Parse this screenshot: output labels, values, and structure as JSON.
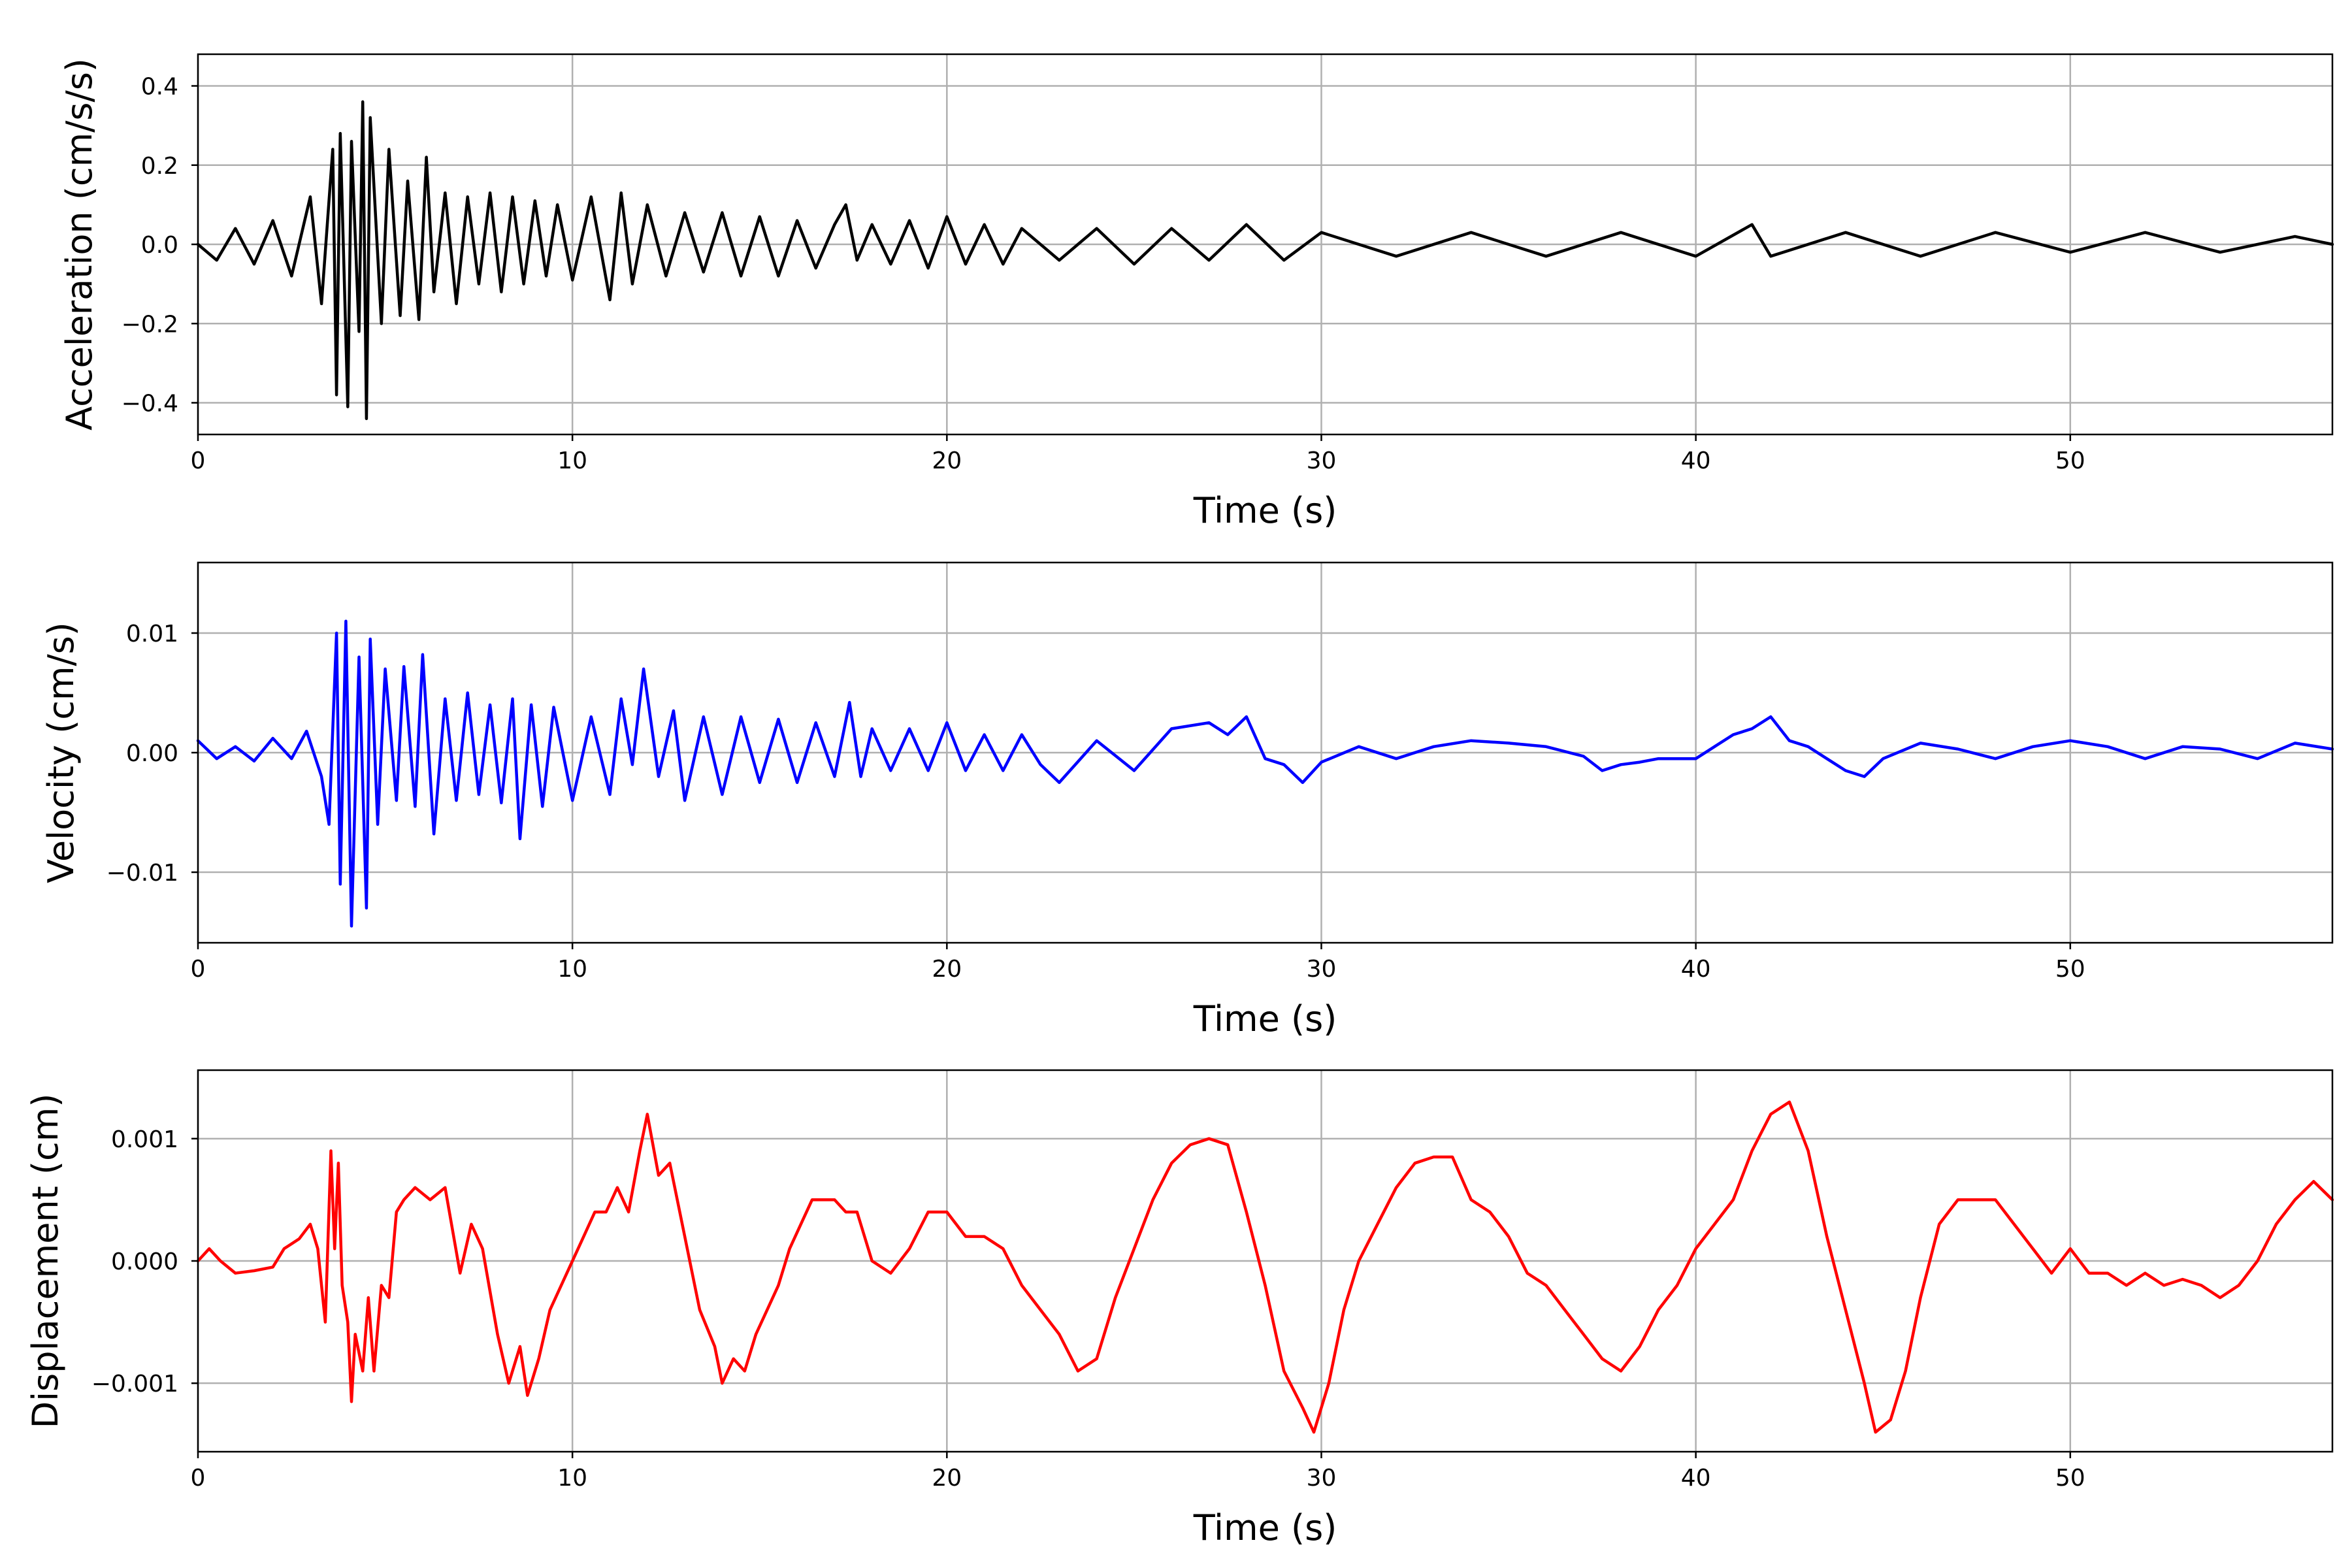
{
  "chart_data": [
    {
      "type": "line",
      "xlabel": "Time (s)",
      "ylabel": "Acceleration (cm/s/s)",
      "xlim": [
        0,
        57
      ],
      "ylim": [
        -0.48,
        0.48
      ],
      "xticks": [
        0,
        10,
        20,
        30,
        40,
        50
      ],
      "yticks": [
        -0.4,
        -0.2,
        0.0,
        0.2,
        0.4
      ],
      "xtick_labels": [
        "0",
        "10",
        "20",
        "30",
        "40",
        "50"
      ],
      "ytick_labels": [
        "−0.4",
        "−0.2",
        "0.0",
        "0.2",
        "0.4"
      ],
      "grid": true,
      "series": [
        {
          "color": "#000000",
          "x": [
            0,
            0.5,
            1.0,
            1.5,
            2.0,
            2.5,
            3.0,
            3.3,
            3.6,
            3.7,
            3.8,
            4.0,
            4.1,
            4.3,
            4.4,
            4.5,
            4.6,
            4.9,
            5.1,
            5.4,
            5.6,
            5.9,
            6.1,
            6.3,
            6.6,
            6.9,
            7.2,
            7.5,
            7.8,
            8.1,
            8.4,
            8.7,
            9.0,
            9.3,
            9.6,
            10.0,
            10.5,
            11.0,
            11.3,
            11.6,
            12.0,
            12.5,
            13.0,
            13.5,
            14.0,
            14.5,
            15.0,
            15.5,
            16.0,
            16.5,
            17.0,
            17.3,
            17.6,
            18.0,
            18.5,
            19.0,
            19.5,
            20.0,
            20.5,
            21.0,
            21.5,
            22.0,
            23.0,
            24.0,
            25.0,
            26.0,
            27.0,
            28.0,
            29.0,
            30.0,
            32.0,
            34.0,
            36.0,
            38.0,
            40.0,
            41.5,
            42.0,
            44.0,
            46.0,
            48.0,
            50.0,
            52.0,
            54.0,
            56.0,
            57.0
          ],
          "y": [
            0.0,
            -0.04,
            0.04,
            -0.05,
            0.06,
            -0.08,
            0.12,
            -0.15,
            0.24,
            -0.38,
            0.28,
            -0.41,
            0.26,
            -0.22,
            0.36,
            -0.44,
            0.32,
            -0.2,
            0.24,
            -0.18,
            0.16,
            -0.19,
            0.22,
            -0.12,
            0.13,
            -0.15,
            0.12,
            -0.1,
            0.13,
            -0.12,
            0.12,
            -0.1,
            0.11,
            -0.08,
            0.1,
            -0.09,
            0.12,
            -0.14,
            0.13,
            -0.1,
            0.1,
            -0.08,
            0.08,
            -0.07,
            0.08,
            -0.08,
            0.07,
            -0.08,
            0.06,
            -0.06,
            0.05,
            0.1,
            -0.04,
            0.05,
            -0.05,
            0.06,
            -0.06,
            0.07,
            -0.05,
            0.05,
            -0.05,
            0.04,
            -0.04,
            0.04,
            -0.05,
            0.04,
            -0.04,
            0.05,
            -0.04,
            0.03,
            -0.03,
            0.03,
            -0.03,
            0.03,
            -0.03,
            0.05,
            -0.03,
            0.03,
            -0.03,
            0.03,
            -0.02,
            0.03,
            -0.02,
            0.02,
            0.0
          ]
        }
      ]
    },
    {
      "type": "line",
      "xlabel": "Time (s)",
      "ylabel": "Velocity (cm/s)",
      "xlim": [
        0,
        57
      ],
      "ylim": [
        -0.0159,
        0.0159
      ],
      "xticks": [
        0,
        10,
        20,
        30,
        40,
        50
      ],
      "yticks": [
        -0.01,
        0.0,
        0.01
      ],
      "xtick_labels": [
        "0",
        "10",
        "20",
        "30",
        "40",
        "50"
      ],
      "ytick_labels": [
        "−0.01",
        "0.00",
        "0.01"
      ],
      "grid": true,
      "series": [
        {
          "color": "#0000ff",
          "x": [
            0,
            0.5,
            1.0,
            1.5,
            2.0,
            2.5,
            2.9,
            3.3,
            3.5,
            3.7,
            3.8,
            3.95,
            4.1,
            4.3,
            4.5,
            4.6,
            4.8,
            5.0,
            5.3,
            5.5,
            5.8,
            6.0,
            6.3,
            6.6,
            6.9,
            7.2,
            7.5,
            7.8,
            8.1,
            8.4,
            8.6,
            8.9,
            9.2,
            9.5,
            10.0,
            10.5,
            11.0,
            11.3,
            11.6,
            11.9,
            12.3,
            12.7,
            13.0,
            13.5,
            14.0,
            14.5,
            15.0,
            15.5,
            16.0,
            16.5,
            17.0,
            17.4,
            17.7,
            18.0,
            18.5,
            19.0,
            19.5,
            20.0,
            20.5,
            21.0,
            21.5,
            22.0,
            22.5,
            23.0,
            24.0,
            25.0,
            26.0,
            27.0,
            27.5,
            28.0,
            28.5,
            29.0,
            29.5,
            30.0,
            31.0,
            32.0,
            33.0,
            34.0,
            35.0,
            36.0,
            37.0,
            37.5,
            38.0,
            38.5,
            39.0,
            40.0,
            40.5,
            41.0,
            41.5,
            42.0,
            42.5,
            43.0,
            43.5,
            44.0,
            44.5,
            45.0,
            46.0,
            47.0,
            48.0,
            49.0,
            50.0,
            51.0,
            52.0,
            53.0,
            54.0,
            55.0,
            56.0,
            57.0
          ],
          "y": [
            0.001,
            -0.0005,
            0.0005,
            -0.0007,
            0.0012,
            -0.0005,
            0.0018,
            -0.002,
            -0.006,
            0.01,
            -0.011,
            0.011,
            -0.0145,
            0.008,
            -0.013,
            0.0095,
            -0.006,
            0.007,
            -0.004,
            0.0072,
            -0.0045,
            0.0082,
            -0.0068,
            0.0045,
            -0.004,
            0.005,
            -0.0035,
            0.004,
            -0.0042,
            0.0045,
            -0.0072,
            0.004,
            -0.0045,
            0.0038,
            -0.004,
            0.003,
            -0.0035,
            0.0045,
            -0.001,
            0.007,
            -0.002,
            0.0035,
            -0.004,
            0.003,
            -0.0035,
            0.003,
            -0.0025,
            0.0028,
            -0.0025,
            0.0025,
            -0.002,
            0.0042,
            -0.002,
            0.002,
            -0.0015,
            0.002,
            -0.0015,
            0.0025,
            -0.0015,
            0.0015,
            -0.0015,
            0.0015,
            -0.001,
            -0.0025,
            0.001,
            -0.0015,
            0.002,
            0.0025,
            0.0015,
            0.003,
            -0.0005,
            -0.001,
            -0.0025,
            -0.0008,
            0.0005,
            -0.0005,
            0.0005,
            0.001,
            0.0008,
            0.0005,
            -0.0003,
            -0.0015,
            -0.001,
            -0.0008,
            -0.0005,
            -0.0005,
            0.0005,
            0.0015,
            0.002,
            0.003,
            0.001,
            0.0005,
            -0.0005,
            -0.0015,
            -0.002,
            -0.0005,
            0.0008,
            0.0003,
            -0.0005,
            0.0005,
            0.001,
            0.0005,
            -0.0005,
            0.0005,
            0.0003,
            -0.0005,
            0.0008,
            0.0003
          ]
        }
      ]
    },
    {
      "type": "line",
      "xlabel": "Time (s)",
      "ylabel": "Displacement (cm)",
      "xlim": [
        0,
        57
      ],
      "ylim": [
        -0.00156,
        0.00156
      ],
      "xticks": [
        0,
        10,
        20,
        30,
        40,
        50
      ],
      "yticks": [
        -0.001,
        0.0,
        0.001
      ],
      "xtick_labels": [
        "0",
        "10",
        "20",
        "30",
        "40",
        "50"
      ],
      "ytick_labels": [
        "−0.001",
        "0.000",
        "0.001"
      ],
      "grid": true,
      "series": [
        {
          "color": "#ff0000",
          "x": [
            0,
            0.3,
            0.6,
            1.0,
            1.5,
            2.0,
            2.3,
            2.7,
            3.0,
            3.2,
            3.4,
            3.55,
            3.65,
            3.75,
            3.85,
            4.0,
            4.1,
            4.2,
            4.4,
            4.55,
            4.7,
            4.9,
            5.1,
            5.3,
            5.5,
            5.8,
            6.2,
            6.6,
            7.0,
            7.3,
            7.6,
            8.0,
            8.3,
            8.6,
            8.8,
            9.1,
            9.4,
            9.7,
            10.0,
            10.3,
            10.6,
            10.9,
            11.2,
            11.5,
            11.8,
            12.0,
            12.3,
            12.6,
            13.0,
            13.4,
            13.8,
            14.0,
            14.3,
            14.6,
            14.9,
            15.2,
            15.5,
            15.8,
            16.1,
            16.4,
            16.7,
            17.0,
            17.3,
            17.6,
            18.0,
            18.5,
            19.0,
            19.5,
            20.0,
            20.5,
            21.0,
            21.5,
            22.0,
            22.5,
            23.0,
            23.5,
            24.0,
            24.5,
            25.0,
            25.5,
            26.0,
            26.5,
            27.0,
            27.5,
            28.0,
            28.5,
            29.0,
            29.5,
            29.8,
            30.2,
            30.6,
            31.0,
            31.5,
            32.0,
            32.5,
            33.0,
            33.5,
            34.0,
            34.5,
            35.0,
            35.5,
            36.0,
            36.5,
            37.0,
            37.5,
            38.0,
            38.5,
            39.0,
            39.5,
            40.0,
            40.5,
            41.0,
            41.5,
            42.0,
            42.5,
            43.0,
            43.5,
            44.0,
            44.5,
            44.8,
            45.2,
            45.6,
            46.0,
            46.5,
            47.0,
            47.5,
            48.0,
            48.5,
            49.0,
            49.5,
            50.0,
            50.5,
            51.0,
            51.5,
            52.0,
            52.5,
            53.0,
            53.5,
            54.0,
            54.5,
            55.0,
            55.5,
            56.0,
            56.5,
            57.0
          ],
          "y": [
            0.0,
            0.0001,
            0.0,
            -0.0001,
            -8e-05,
            -5e-05,
            0.0001,
            0.00018,
            0.0003,
            0.0001,
            -0.0005,
            0.0009,
            0.0001,
            0.0008,
            -0.0002,
            -0.0005,
            -0.00115,
            -0.0006,
            -0.0009,
            -0.0003,
            -0.0009,
            -0.0002,
            -0.0003,
            0.0004,
            0.0005,
            0.0006,
            0.0005,
            0.0006,
            -0.0001,
            0.0003,
            0.0001,
            -0.0006,
            -0.001,
            -0.0007,
            -0.0011,
            -0.0008,
            -0.0004,
            -0.0002,
            0.0,
            0.0002,
            0.0004,
            0.0004,
            0.0006,
            0.0004,
            0.0009,
            0.0012,
            0.0007,
            0.0008,
            0.0002,
            -0.0004,
            -0.0007,
            -0.001,
            -0.0008,
            -0.0009,
            -0.0006,
            -0.0004,
            -0.0002,
            0.0001,
            0.0003,
            0.0005,
            0.0005,
            0.0005,
            0.0004,
            0.0004,
            0.0,
            -0.0001,
            0.0001,
            0.0004,
            0.0004,
            0.0002,
            0.0002,
            0.0001,
            -0.0002,
            -0.0004,
            -0.0006,
            -0.0009,
            -0.0008,
            -0.0003,
            0.0001,
            0.0005,
            0.0008,
            0.00095,
            0.001,
            0.00095,
            0.0004,
            -0.0002,
            -0.0009,
            -0.0012,
            -0.0014,
            -0.001,
            -0.0004,
            0.0,
            0.0003,
            0.0006,
            0.0008,
            0.00085,
            0.00085,
            0.0005,
            0.0004,
            0.0002,
            -0.0001,
            -0.0002,
            -0.0004,
            -0.0006,
            -0.0008,
            -0.0009,
            -0.0007,
            -0.0004,
            -0.0002,
            0.0001,
            0.0003,
            0.0005,
            0.0009,
            0.0012,
            0.0013,
            0.0009,
            0.0002,
            -0.0004,
            -0.001,
            -0.0014,
            -0.0013,
            -0.0009,
            -0.0003,
            0.0003,
            0.0005,
            0.0005,
            0.0005,
            0.0003,
            0.0001,
            -0.0001,
            0.0001,
            -0.0001,
            -0.0001,
            -0.0002,
            -0.0001,
            -0.0002,
            -0.00015,
            -0.0002,
            -0.0003,
            -0.0002,
            0.0,
            0.0003,
            0.0005,
            0.00065,
            0.0005
          ]
        }
      ]
    }
  ]
}
